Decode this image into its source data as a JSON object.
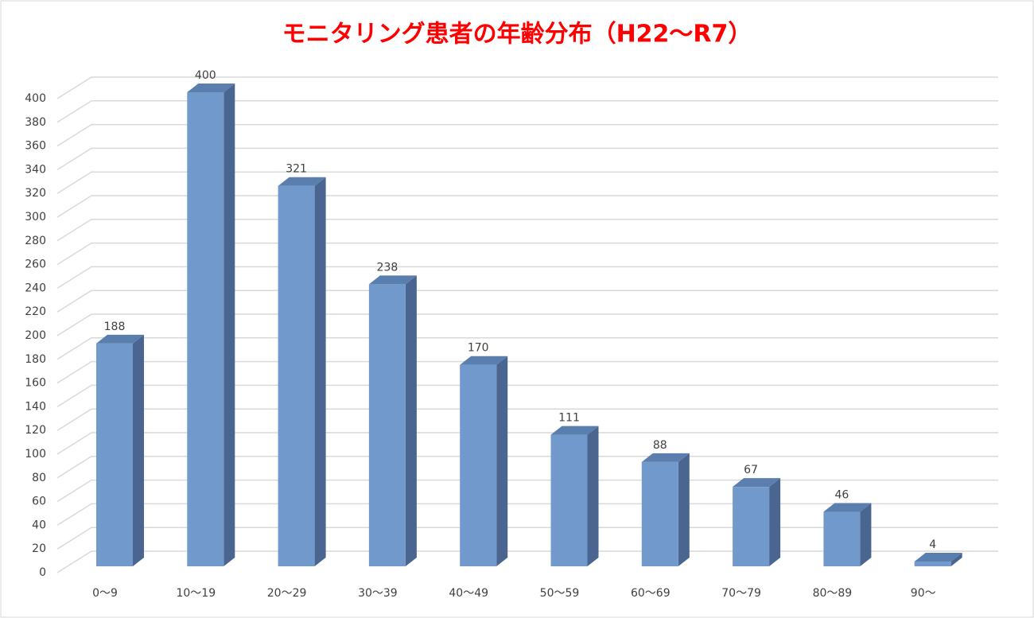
{
  "chart_data": {
    "type": "bar",
    "title": "モニタリング患者の年齢分布（H22〜R7）",
    "categories": [
      "0〜9",
      "10〜19",
      "20〜29",
      "30〜39",
      "40〜49",
      "50〜59",
      "60〜69",
      "70〜79",
      "80〜89",
      "90〜"
    ],
    "values": [
      188,
      400,
      321,
      238,
      170,
      111,
      88,
      67,
      46,
      4
    ],
    "color": "#7299cc",
    "ylim": [
      0,
      400
    ],
    "yticks": [
      0,
      20,
      40,
      60,
      80,
      100,
      120,
      140,
      160,
      180,
      200,
      220,
      240,
      260,
      280,
      300,
      320,
      340,
      360,
      380,
      400
    ],
    "grid": true
  }
}
